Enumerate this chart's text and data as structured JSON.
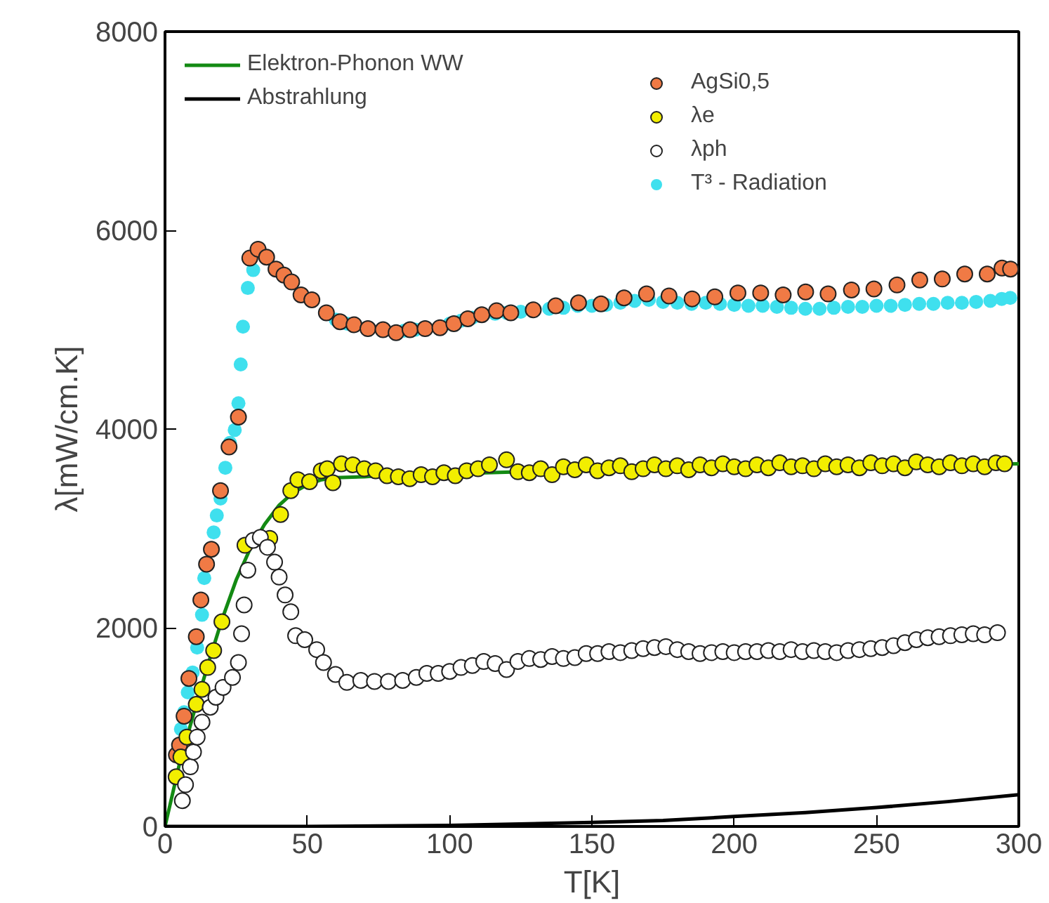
{
  "chart_data": {
    "type": "scatter",
    "xlabel": "T[K]",
    "ylabel": "λ[mW/cm.K]",
    "xlim": [
      0,
      300
    ],
    "xticks": [
      0,
      50,
      100,
      150,
      200,
      250,
      300
    ],
    "ylim": [
      0,
      8000
    ],
    "yticks": [
      0,
      2000,
      4000,
      6000,
      8000
    ],
    "grid": false,
    "legend": "top left",
    "marker": "circle",
    "series": [
      {
        "name": "Elektron-Phonon WW",
        "type": "line",
        "marker": "none",
        "color": "#138a13",
        "x": [
          0,
          5,
          10,
          15,
          20,
          25,
          30,
          35,
          40,
          45,
          50,
          55,
          60,
          70,
          80,
          100,
          150,
          200,
          250,
          300
        ],
        "values": [
          0,
          620,
          1130,
          1620,
          2080,
          2480,
          2800,
          3040,
          3230,
          3360,
          3440,
          3490,
          3510,
          3520,
          3540,
          3550,
          3590,
          3610,
          3630,
          3650
        ]
      },
      {
        "name": "Abstrahlung",
        "type": "line",
        "marker": "none",
        "color": "#000000",
        "x": [
          0,
          50,
          100,
          150,
          175,
          200,
          225,
          250,
          275,
          300
        ],
        "values": [
          0,
          0,
          10,
          40,
          60,
          100,
          140,
          190,
          250,
          320
        ]
      },
      {
        "name": "T³ - Radiation",
        "color": "#3fe0ee",
        "x": [
          5.6,
          6.7,
          8,
          9.7,
          11.3,
          13,
          13.8,
          15.9,
          17.1,
          18.2,
          19.5,
          21.2,
          22.8,
          24.5,
          25.8,
          26.6,
          27.4,
          29.1,
          31,
          33,
          36,
          40,
          44,
          48,
          52,
          56,
          60,
          64,
          68,
          72,
          76,
          80,
          84,
          88,
          92,
          96,
          100,
          104,
          108,
          112,
          116,
          120,
          125,
          130,
          135,
          140,
          145,
          150,
          155,
          160,
          165,
          170,
          175,
          180,
          185,
          190,
          195,
          200,
          205,
          210,
          215,
          220,
          225,
          230,
          235,
          240,
          245,
          250,
          255,
          260,
          265,
          270,
          275,
          280,
          285,
          290,
          294,
          297
        ],
        "values": [
          980,
          1150,
          1350,
          1550,
          1800,
          2130,
          2500,
          null,
          2960,
          3130,
          3300,
          3610,
          3860,
          3990,
          4260,
          4650,
          5030,
          5420,
          5600,
          null,
          null,
          null,
          null,
          null,
          null,
          null,
          5100,
          5060,
          null,
          null,
          null,
          null,
          4990,
          5000,
          null,
          null,
          5060,
          5090,
          5120,
          null,
          5160,
          5170,
          5180,
          null,
          5210,
          5220,
          5240,
          5240,
          5250,
          5270,
          5290,
          5300,
          5280,
          5270,
          5260,
          5270,
          5260,
          5250,
          5240,
          5240,
          5230,
          5220,
          5210,
          5210,
          5220,
          5230,
          5230,
          5240,
          5240,
          5250,
          5260,
          5260,
          5270,
          5270,
          5280,
          5290,
          5310,
          5320
        ]
      },
      {
        "name": "AgSi0,5",
        "color": "#f07a45",
        "x": [
          4,
          5.1,
          6.7,
          8.4,
          11,
          12.6,
          14.6,
          16.3,
          19.5,
          22.5,
          25.8,
          29.8,
          32.7,
          35.7,
          39,
          41.8,
          44.5,
          47.8,
          51.6,
          56.7,
          61.5,
          66.4,
          71.3,
          76.6,
          81.2,
          86.1,
          91.4,
          96.6,
          101.5,
          106.4,
          111.3,
          116.5,
          121.5,
          129.4,
          137.3,
          145.3,
          153.2,
          161.3,
          169.2,
          177.1,
          185.2,
          193.2,
          201.3,
          209.3,
          217.2,
          225.1,
          233,
          241.2,
          249.1,
          257.2,
          265.2,
          273.1,
          281,
          288.9,
          294.1,
          297.1
        ],
        "values": [
          720,
          820,
          1110,
          1490,
          1910,
          2280,
          2640,
          2790,
          3380,
          3820,
          4120,
          5720,
          5810,
          5730,
          5610,
          5550,
          5480,
          5350,
          5300,
          5170,
          5080,
          5050,
          5010,
          5000,
          4970,
          5000,
          5010,
          5020,
          5060,
          5110,
          5150,
          5190,
          5170,
          5200,
          5240,
          5270,
          5260,
          5320,
          5360,
          5340,
          5310,
          5330,
          5370,
          5370,
          5350,
          5380,
          5360,
          5400,
          5410,
          5450,
          5500,
          5510,
          5560,
          5560,
          5620,
          5610
        ]
      },
      {
        "name": "λe",
        "color": "#f2ee00",
        "x": [
          3.9,
          5.6,
          7.7,
          11,
          13,
          15,
          17.1,
          20,
          28.1,
          36.8,
          40.6,
          44.2,
          46.7,
          50.8,
          54.9,
          57,
          59,
          62,
          66,
          70,
          74,
          78,
          82,
          86,
          90,
          94,
          98,
          102,
          106,
          110,
          114,
          120,
          124,
          128,
          132,
          136,
          140,
          144,
          148,
          152,
          156,
          160,
          164,
          168,
          172,
          176,
          180,
          184,
          188,
          192,
          196,
          200,
          204,
          208,
          212,
          216,
          220,
          224,
          228,
          232,
          236,
          240,
          244,
          248,
          252,
          256,
          260,
          264,
          268,
          272,
          276,
          280,
          284,
          288,
          292,
          295
        ],
        "values": [
          500,
          700,
          900,
          1230,
          1380,
          1600,
          1770,
          2060,
          2830,
          2900,
          3140,
          3380,
          3490,
          3470,
          3580,
          3600,
          3460,
          3650,
          3640,
          3600,
          3580,
          3530,
          3520,
          3500,
          3540,
          3520,
          3560,
          3530,
          3580,
          3600,
          3640,
          3690,
          3570,
          3560,
          3600,
          3540,
          3620,
          3590,
          3640,
          3580,
          3610,
          3630,
          3570,
          3600,
          3640,
          3600,
          3630,
          3590,
          3640,
          3610,
          3650,
          3620,
          3600,
          3640,
          3610,
          3660,
          3620,
          3630,
          3600,
          3650,
          3620,
          3640,
          3610,
          3660,
          3630,
          3650,
          3610,
          3670,
          3640,
          3620,
          3660,
          3630,
          3650,
          3620,
          3660,
          3650
        ]
      },
      {
        "name": "λph",
        "color": "#ffffff",
        "x": [
          6.1,
          7.2,
          8.9,
          10,
          11.3,
          13,
          15.9,
          17.9,
          20.4,
          23.7,
          25.8,
          26.9,
          27.8,
          29.1,
          31,
          33.5,
          36,
          38.5,
          40.1,
          42.2,
          44.2,
          45.9,
          49.1,
          53.3,
          55.7,
          59.9,
          63.9,
          68.8,
          73.6,
          78.5,
          83.5,
          88.3,
          92,
          96,
          100,
          104,
          108,
          112,
          116,
          120,
          124,
          128,
          132,
          136,
          140,
          144,
          148,
          152,
          156,
          160,
          164,
          168,
          172,
          176,
          180,
          184,
          188,
          192,
          196,
          200,
          204,
          208,
          212,
          216,
          220,
          224,
          228,
          232,
          236,
          240,
          244,
          248,
          252,
          256,
          260,
          264,
          268,
          272,
          276,
          280,
          284,
          288,
          292.5
        ],
        "values": [
          260,
          420,
          600,
          750,
          900,
          1050,
          1200,
          1300,
          1400,
          1500,
          1650,
          1940,
          2230,
          2580,
          2880,
          2910,
          2810,
          2660,
          2510,
          2330,
          2160,
          1920,
          1880,
          1780,
          1650,
          1530,
          1450,
          1470,
          1460,
          1460,
          1470,
          1500,
          1540,
          1540,
          1560,
          1600,
          1620,
          1660,
          1640,
          1580,
          1660,
          1690,
          1680,
          1710,
          1690,
          1700,
          1740,
          1740,
          1760,
          1750,
          1770,
          1790,
          1800,
          1810,
          1780,
          1760,
          1740,
          1750,
          1760,
          1750,
          1760,
          1760,
          1770,
          1760,
          1780,
          1760,
          1770,
          1760,
          1750,
          1770,
          1780,
          1790,
          1800,
          1820,
          1850,
          1880,
          1900,
          1910,
          1920,
          1930,
          1940,
          1930,
          1950
        ]
      }
    ]
  }
}
